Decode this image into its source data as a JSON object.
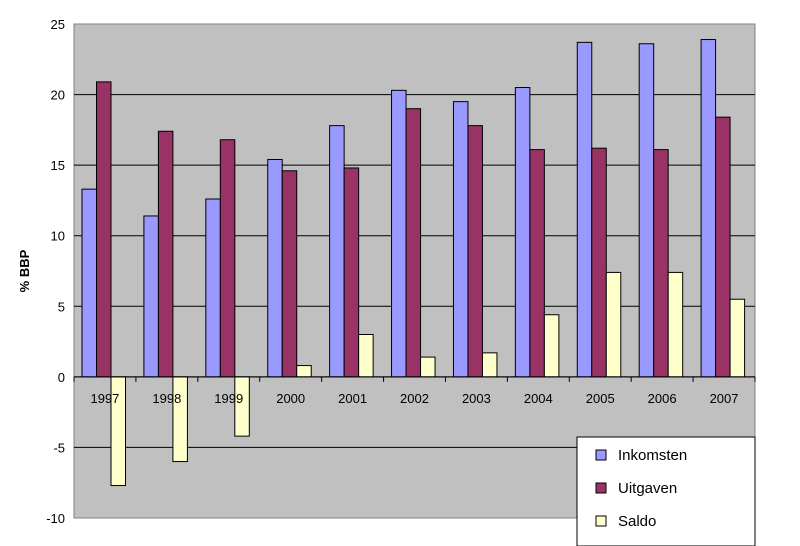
{
  "chart_data": {
    "type": "bar",
    "title": "",
    "xlabel": "",
    "ylabel": "% BBP",
    "ylim": [
      -10,
      25
    ],
    "yticks": [
      25,
      20,
      15,
      10,
      5,
      0,
      -5,
      -10
    ],
    "grid": true,
    "legend_position": "bottom-right",
    "categories": [
      "1997",
      "1998",
      "1999",
      "2000",
      "2001",
      "2002",
      "2003",
      "2004",
      "2005",
      "2006",
      "2007"
    ],
    "series": [
      {
        "name": "Inkomsten",
        "color": "#9999ff",
        "values": [
          13.3,
          11.4,
          12.6,
          15.4,
          17.8,
          20.3,
          19.5,
          20.5,
          23.7,
          23.6,
          23.9
        ]
      },
      {
        "name": "Uitgaven",
        "color": "#993366",
        "values": [
          20.9,
          17.4,
          16.8,
          14.6,
          14.8,
          19.0,
          17.8,
          16.1,
          16.2,
          16.1,
          18.4
        ]
      },
      {
        "name": "Saldo",
        "color": "#ffffcc",
        "values": [
          -7.7,
          -6.0,
          -4.2,
          0.8,
          3.0,
          1.4,
          1.7,
          4.4,
          7.4,
          7.4,
          5.5
        ]
      }
    ]
  }
}
